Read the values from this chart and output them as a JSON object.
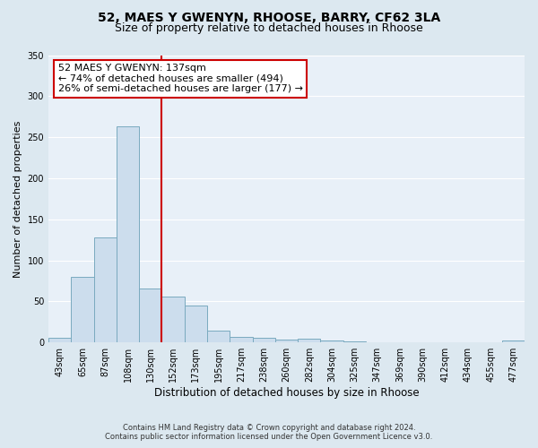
{
  "title": "52, MAES Y GWENYN, RHOOSE, BARRY, CF62 3LA",
  "subtitle": "Size of property relative to detached houses in Rhoose",
  "bar_labels": [
    "43sqm",
    "65sqm",
    "87sqm",
    "108sqm",
    "130sqm",
    "152sqm",
    "173sqm",
    "195sqm",
    "217sqm",
    "238sqm",
    "260sqm",
    "282sqm",
    "304sqm",
    "325sqm",
    "347sqm",
    "369sqm",
    "390sqm",
    "412sqm",
    "434sqm",
    "455sqm",
    "477sqm"
  ],
  "bar_values": [
    6,
    80,
    128,
    263,
    66,
    56,
    45,
    14,
    7,
    6,
    4,
    5,
    2,
    1,
    0,
    0,
    0,
    0,
    0,
    0,
    2
  ],
  "bar_color": "#ccdded",
  "bar_edge_color": "#7aaabf",
  "ylim": [
    0,
    350
  ],
  "yticks": [
    0,
    50,
    100,
    150,
    200,
    250,
    300,
    350
  ],
  "ylabel": "Number of detached properties",
  "xlabel": "Distribution of detached houses by size in Rhoose",
  "vline_color": "#cc0000",
  "annotation_title": "52 MAES Y GWENYN: 137sqm",
  "annotation_line1": "← 74% of detached houses are smaller (494)",
  "annotation_line2": "26% of semi-detached houses are larger (177) →",
  "annotation_box_facecolor": "#ffffff",
  "annotation_box_edgecolor": "#cc0000",
  "footer_line1": "Contains HM Land Registry data © Crown copyright and database right 2024.",
  "footer_line2": "Contains public sector information licensed under the Open Government Licence v3.0.",
  "fig_facecolor": "#dce8f0",
  "axes_facecolor": "#e8f0f8",
  "grid_color": "#ffffff",
  "title_fontsize": 10,
  "subtitle_fontsize": 9,
  "tick_fontsize": 7,
  "label_fontsize": 8,
  "annotation_fontsize": 8
}
